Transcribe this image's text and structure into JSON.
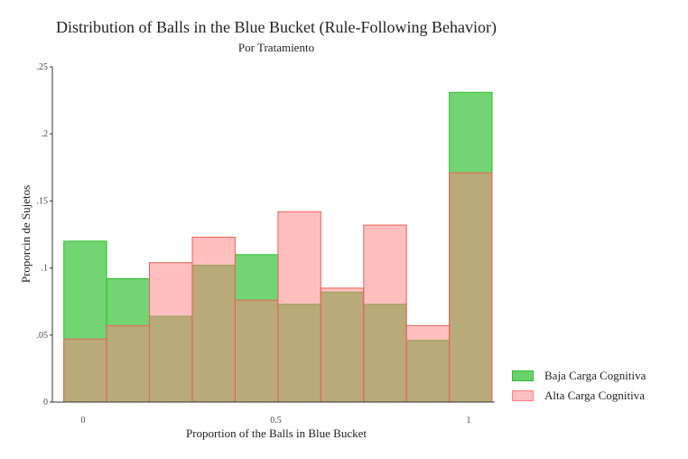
{
  "chart_data": {
    "type": "bar",
    "title": "Distribution of Balls in the Blue Bucket (Rule-Following Behavior)",
    "subtitle": "Por Tratamiento",
    "xlabel": "Proportion of the Balls in Blue Bucket",
    "ylabel": "Proporcin de Sujetos",
    "ylim": [
      0,
      0.25
    ],
    "y_ticks": [
      0,
      0.05,
      0.1,
      0.15,
      0.2,
      0.25
    ],
    "y_tick_labels": [
      "0",
      ".05",
      ".1",
      ".15",
      ".2",
      ".25"
    ],
    "x_ticks": [
      0,
      0.5,
      1
    ],
    "x_tick_labels": [
      "0",
      "0.5",
      "1"
    ],
    "bin_edges": [
      -0.05,
      0.0611,
      0.1722,
      0.2833,
      0.3944,
      0.5056,
      0.6167,
      0.7278,
      0.8389,
      0.95,
      1.0611
    ],
    "series": [
      {
        "name": "Baja Carga Cognitiva",
        "color": "#2fbf2f",
        "values": [
          0.12,
          0.092,
          0.064,
          0.102,
          0.11,
          0.073,
          0.082,
          0.073,
          0.046,
          0.231
        ]
      },
      {
        "name": "Alta Carga Cognitiva",
        "color": "#ff7f7f",
        "values": [
          0.047,
          0.057,
          0.104,
          0.123,
          0.076,
          0.142,
          0.085,
          0.132,
          0.057,
          0.171
        ]
      }
    ],
    "legend_position": "bottom-right",
    "grid": false
  }
}
